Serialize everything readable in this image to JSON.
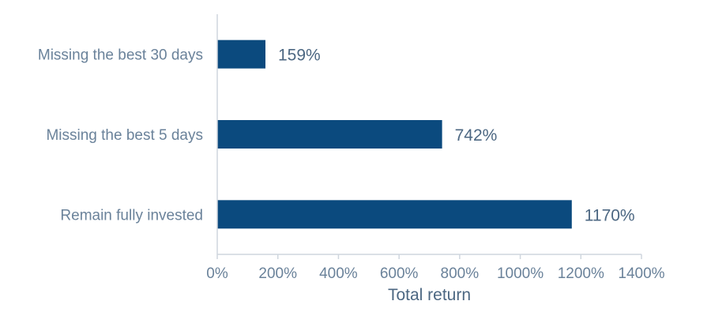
{
  "chart_data": {
    "type": "bar",
    "orientation": "horizontal",
    "categories": [
      "Missing the best 30 days",
      "Missing the best 5 days",
      "Remain fully invested"
    ],
    "values": [
      159,
      742,
      1170
    ],
    "value_labels": [
      "159%",
      "742%",
      "1170%"
    ],
    "xlabel": "Total return",
    "ylabel": "",
    "title": "",
    "xlim": [
      0,
      1400
    ],
    "xticks": [
      0,
      200,
      400,
      600,
      800,
      1000,
      1200,
      1400
    ],
    "xtick_labels": [
      "0%",
      "200%",
      "400%",
      "600%",
      "800%",
      "1000%",
      "1200%",
      "1400%"
    ],
    "grid": false,
    "legend": "none",
    "colors": {
      "bar": "#0b4a7e",
      "axis": "#cfd6de",
      "label": "#6a829a",
      "value": "#4c6782"
    }
  }
}
